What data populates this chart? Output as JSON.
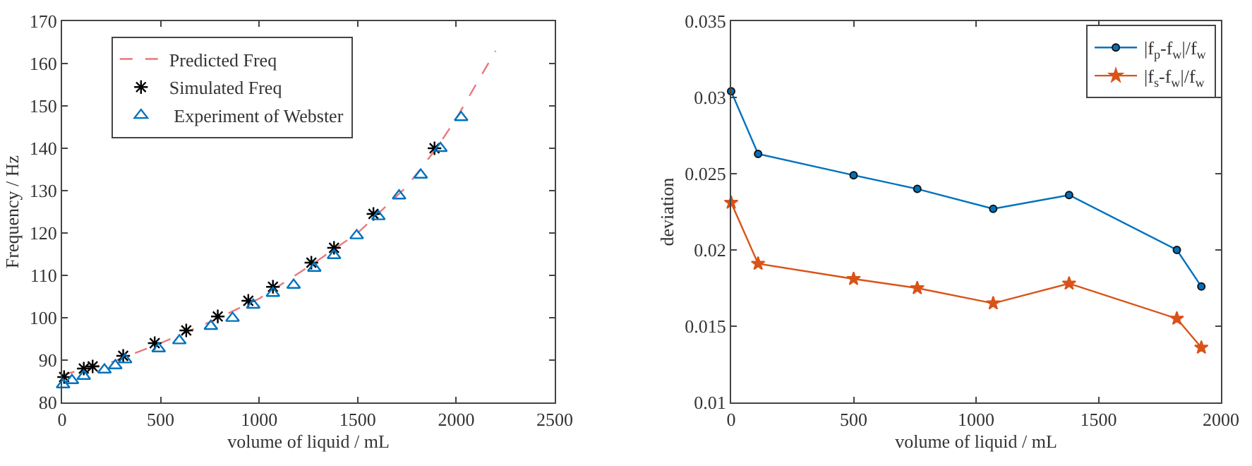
{
  "chart_data": [
    {
      "type": "scatter",
      "xlabel": "volume of liquid / mL",
      "ylabel": "Frequency / Hz",
      "xlim": [
        0,
        2500
      ],
      "xticks": [
        0,
        500,
        1000,
        1500,
        2000,
        2500
      ],
      "ylim": [
        80,
        170
      ],
      "yticks": [
        80,
        90,
        100,
        110,
        120,
        130,
        140,
        150,
        160,
        170
      ],
      "grid": false,
      "legend": "top left",
      "series": [
        {
          "name": "Predicted Freq",
          "type": "line",
          "line_style": "dashed",
          "marker": "none",
          "color": "#e8787e",
          "x": [
            0,
            250,
            500,
            750,
            1000,
            1250,
            1500,
            1750,
            1900,
            2000,
            2100,
            2200
          ],
          "values": [
            86.5,
            89.5,
            94,
            99,
            104.5,
            112,
            120,
            131,
            140,
            147,
            155,
            163
          ]
        },
        {
          "name": "Simulated Freq",
          "marker": "cross",
          "color": "#000000",
          "x": [
            10,
            110,
            155,
            310,
            470,
            630,
            790,
            945,
            1070,
            1265,
            1380,
            1580,
            1890
          ],
          "values": [
            86,
            88,
            88.5,
            91,
            94,
            97,
            100.3,
            104,
            107.3,
            113,
            116.5,
            124.5,
            140
          ]
        },
        {
          "name": " Experiment of Webster",
          "marker": "triangle",
          "color": "#0072bd",
          "x": [
            5,
            50,
            110,
            215,
            270,
            320,
            490,
            595,
            755,
            865,
            970,
            1070,
            1175,
            1280,
            1380,
            1495,
            1605,
            1710,
            1820,
            1920,
            2025
          ],
          "values": [
            84.2,
            85.2,
            86.2,
            87.7,
            88.7,
            90.1,
            92.7,
            94.6,
            98,
            99.9,
            103,
            105.8,
            107.7,
            111.7,
            114.7,
            119.4,
            123.9,
            128.8,
            133.7,
            140,
            147.3
          ]
        }
      ]
    },
    {
      "type": "line",
      "xlabel": "volume of liquid / mL",
      "ylabel": "deviation",
      "xlim": [
        0,
        2000
      ],
      "xticks": [
        0,
        500,
        1000,
        1500,
        2000
      ],
      "ylim": [
        0.01,
        0.035
      ],
      "yticks": [
        0.01,
        0.015,
        0.02,
        0.025,
        0.03,
        0.035
      ],
      "grid": false,
      "legend": "top right",
      "x": [
        0,
        110,
        500,
        760,
        1070,
        1380,
        1820,
        1920
      ],
      "series": [
        {
          "name": "|f$_{p}$-f$_{w}$|/f$_{w}$",
          "marker": "circle",
          "color": "#0072bd",
          "values": [
            0.0304,
            0.0263,
            0.0249,
            0.024,
            0.0227,
            0.0236,
            0.02,
            0.0176
          ]
        },
        {
          "name": "|f$_{s}$-f$_{w}$|/f$_{w}$",
          "marker": "star",
          "color": "#d95319",
          "values": [
            0.0231,
            0.0191,
            0.0181,
            0.0175,
            0.0165,
            0.0178,
            0.0155,
            0.0136
          ]
        }
      ]
    }
  ]
}
